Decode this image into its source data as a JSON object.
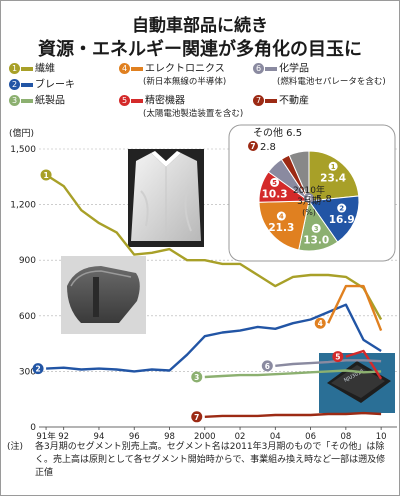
{
  "title_lines": [
    "自動車部品に続き",
    "資源・エネルギー関連が多角化の目玉に"
  ],
  "colors": {
    "textiles": "#a8a028",
    "brakes": "#2255a5",
    "paper": "#8cb070",
    "electronics": "#e08020",
    "precision": "#d42a2a",
    "realestate": "#9c2a14",
    "chemicals": "#8a8aa0",
    "other": "#888888"
  },
  "legend": [
    {
      "num": "1",
      "label": "繊維",
      "color": "#a8a028",
      "sub": ""
    },
    {
      "num": "2",
      "label": "ブレーキ",
      "color": "#2255a5",
      "sub": ""
    },
    {
      "num": "3",
      "label": "紙製品",
      "color": "#8cb070",
      "sub": ""
    },
    {
      "num": "4",
      "label": "エレクトロニクス",
      "color": "#e08020",
      "sub": "(新日本無線の半導体)"
    },
    {
      "num": "5",
      "label": "精密機器",
      "color": "#d42a2a",
      "sub": "(太陽電池製造装置を含む)"
    },
    {
      "num": "6",
      "label": "化学品",
      "color": "#8a8aa0",
      "sub": "(燃料電池セパレータを含む)"
    },
    {
      "num": "7",
      "label": "不動産",
      "color": "#9c2a14",
      "sub": ""
    }
  ],
  "note": {
    "head": "(注)",
    "body": "各3月期のセグメント別売上高。セグメント名は2011年3月期のもので「その他」は除く。売上高は原則として各セグメント開始時からで、事業組み換え時など一部は遡及修正値"
  },
  "chart_data": {
    "type": "line",
    "ylabel": "(億円)",
    "ylim": [
      0,
      1500
    ],
    "yticks": [
      0,
      300,
      600,
      900,
      1200,
      1500
    ],
    "ytick_labels": [
      "0",
      "300",
      "600",
      "900",
      "1,200",
      "1,500"
    ],
    "xticks": [
      1991,
      1992,
      1994,
      1996,
      1998,
      2000,
      2002,
      2004,
      2006,
      2008,
      2010
    ],
    "xtick_labels": [
      "91年",
      "92",
      "94",
      "96",
      "98",
      "2000",
      "02",
      "04",
      "06",
      "08",
      "10"
    ],
    "xlim": [
      1990.6,
      2010.9
    ],
    "series": [
      {
        "name": "繊維",
        "num": "1",
        "color": "#a8a028",
        "x": [
          1991,
          1992,
          1993,
          1994,
          1995,
          1996,
          1997,
          1998,
          1999,
          2000,
          2001,
          2002,
          2003,
          2004,
          2005,
          2006,
          2007,
          2008,
          2009,
          2010
        ],
        "y": [
          1360,
          1300,
          1170,
          1100,
          1050,
          930,
          940,
          960,
          900,
          900,
          880,
          880,
          820,
          760,
          810,
          820,
          820,
          810,
          750,
          580
        ]
      },
      {
        "name": "ブレーキ",
        "num": "2",
        "color": "#2255a5",
        "x": [
          1991,
          1992,
          1993,
          1994,
          1995,
          1996,
          1997,
          1998,
          1999,
          2000,
          2001,
          2002,
          2003,
          2004,
          2005,
          2006,
          2007,
          2008,
          2009,
          2010
        ],
        "y": [
          315,
          320,
          310,
          315,
          310,
          300,
          310,
          305,
          390,
          490,
          510,
          520,
          540,
          530,
          560,
          580,
          620,
          660,
          470,
          410
        ]
      },
      {
        "name": "紙製品",
        "num": "3",
        "color": "#8cb070",
        "x": [
          2000,
          2001,
          2002,
          2003,
          2004,
          2005,
          2006,
          2007,
          2008,
          2009,
          2010
        ],
        "y": [
          270,
          275,
          280,
          280,
          285,
          290,
          295,
          300,
          305,
          295,
          300
        ]
      },
      {
        "name": "エレクトロニクス",
        "num": "4",
        "color": "#e08020",
        "x": [
          2007,
          2008,
          2009,
          2010
        ],
        "y": [
          560,
          760,
          760,
          520
        ]
      },
      {
        "name": "精密機器",
        "num": "5",
        "color": "#d42a2a",
        "x": [
          2008,
          2009,
          2010
        ],
        "y": [
          380,
          410,
          260
        ]
      },
      {
        "name": "化学品",
        "num": "6",
        "color": "#8a8aa0",
        "x": [
          2004,
          2005,
          2006,
          2007,
          2008,
          2009,
          2010
        ],
        "y": [
          330,
          340,
          345,
          350,
          360,
          360,
          355
        ]
      },
      {
        "name": "不動産",
        "num": "7",
        "color": "#9c2a14",
        "x": [
          2000,
          2001,
          2002,
          2003,
          2004,
          2005,
          2006,
          2007,
          2008,
          2009,
          2010
        ],
        "y": [
          55,
          60,
          60,
          60,
          65,
          65,
          65,
          70,
          70,
          75,
          70
        ]
      }
    ],
    "pie": {
      "type": "pie",
      "title_lines": [
        "2010年",
        "3月期",
        "(%)"
      ],
      "slices": [
        {
          "num": "1",
          "label": "1",
          "value": 23.4,
          "color": "#a8a028"
        },
        {
          "num": "2",
          "label": "2",
          "value": 16.9,
          "color": "#2255a5"
        },
        {
          "num": "3",
          "label": "3",
          "value": 13.0,
          "color": "#8cb070"
        },
        {
          "num": "4",
          "label": "4",
          "value": 21.3,
          "color": "#e08020"
        },
        {
          "num": "5",
          "label": "5",
          "value": 10.3,
          "color": "#d42a2a"
        },
        {
          "num": "6",
          "label": "6",
          "value": 5.8,
          "color": "#8a8aa0"
        },
        {
          "num": "7",
          "label": "7",
          "value": 2.8,
          "color": "#9c2a14"
        },
        {
          "num": "",
          "label": "その他",
          "value": 6.5,
          "color": "#888888"
        }
      ]
    }
  }
}
